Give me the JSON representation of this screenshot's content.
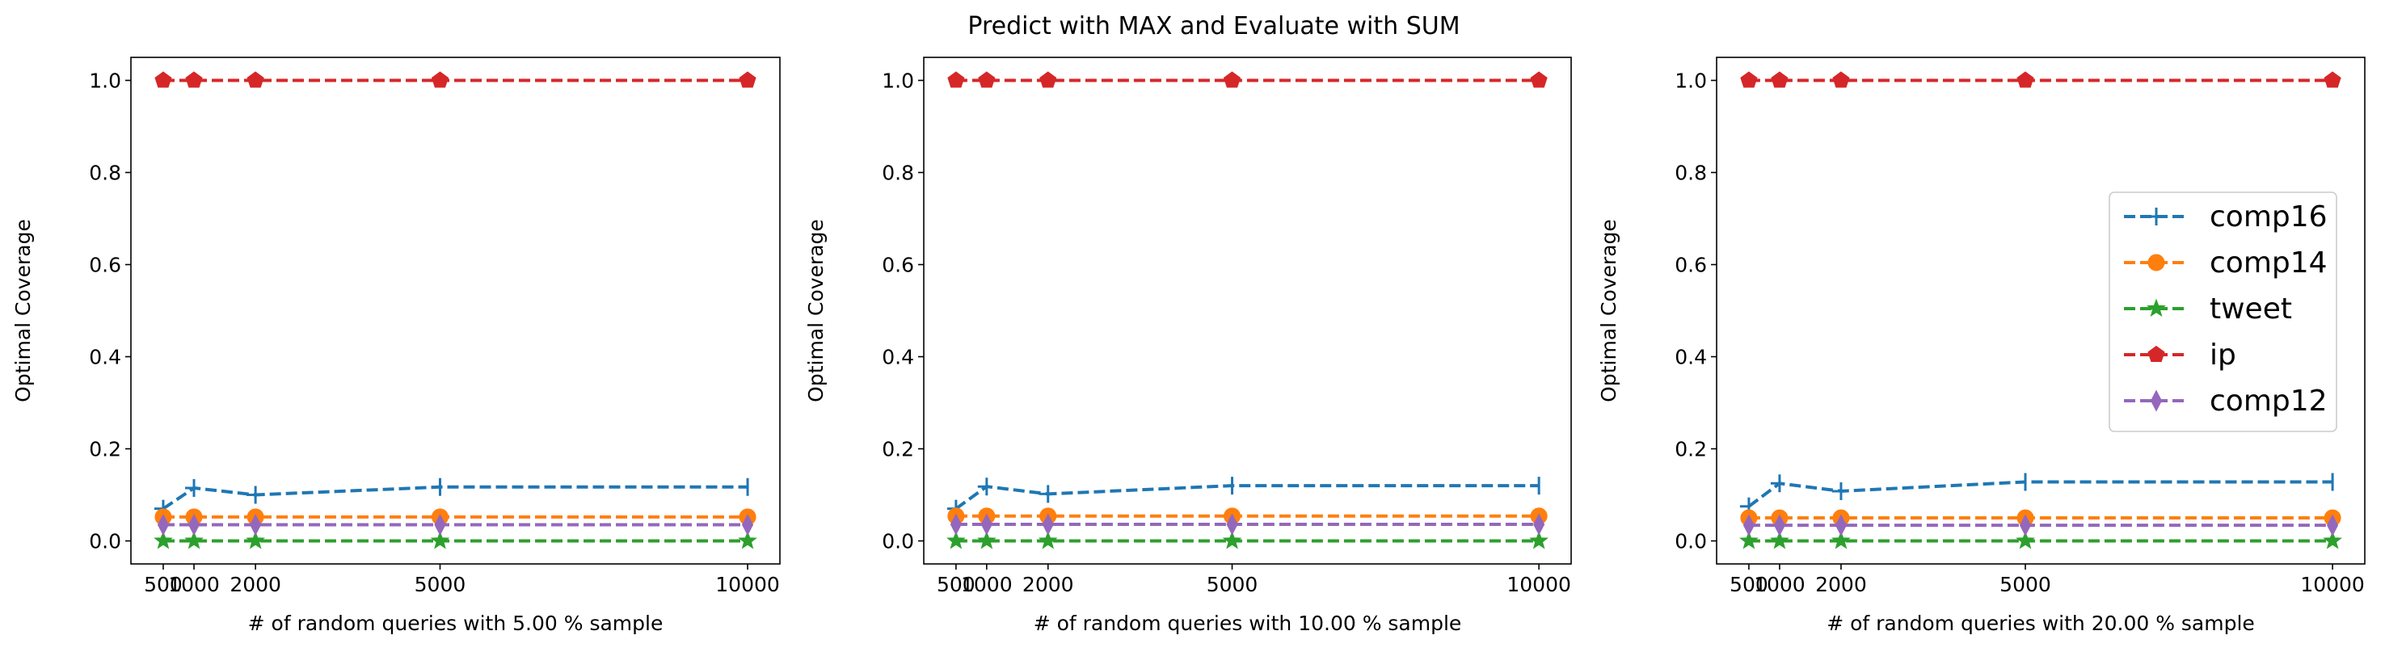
{
  "figure": {
    "suptitle": "Predict with MAX and Evaluate with SUM"
  },
  "colors": {
    "comp16": "#1f77b4",
    "comp14": "#ff7f0e",
    "tweet": "#2ca02c",
    "ip": "#d62728",
    "comp12": "#9467bd"
  },
  "legend": {
    "entries": [
      {
        "name": "comp16",
        "marker": "tri-right-icon"
      },
      {
        "name": "comp14",
        "marker": "circle-icon"
      },
      {
        "name": "tweet",
        "marker": "star-icon"
      },
      {
        "name": "ip",
        "marker": "pentagon-icon"
      },
      {
        "name": "comp12",
        "marker": "thin-diamond-icon"
      }
    ],
    "placement": "center-right of third panel"
  },
  "chart_data": [
    {
      "type": "line",
      "xlabel": "# of random queries with 5.00 % sample",
      "ylabel": "Optimal Coverage",
      "x": [
        500,
        1000,
        2000,
        5000,
        10000
      ],
      "xticks": [
        "500",
        "1000",
        "2000",
        "5000",
        "10000"
      ],
      "yticks": [
        "0.0",
        "0.2",
        "0.4",
        "0.6",
        "0.8",
        "1.0"
      ],
      "xlim": [
        -25,
        10525
      ],
      "ylim": [
        -0.05,
        1.05
      ],
      "grid": false,
      "series": [
        {
          "name": "comp16",
          "values": [
            0.07,
            0.115,
            0.1,
            0.117,
            0.117
          ]
        },
        {
          "name": "comp14",
          "values": [
            0.052,
            0.052,
            0.052,
            0.052,
            0.052
          ]
        },
        {
          "name": "tweet",
          "values": [
            0.0,
            0.0,
            0.0,
            0.0,
            0.0
          ]
        },
        {
          "name": "ip",
          "values": [
            1.0,
            1.0,
            1.0,
            1.0,
            1.0
          ]
        },
        {
          "name": "comp12",
          "values": [
            0.035,
            0.035,
            0.035,
            0.035,
            0.035
          ]
        }
      ]
    },
    {
      "type": "line",
      "xlabel": "# of random queries with 10.00 % sample",
      "ylabel": "Optimal Coverage",
      "x": [
        500,
        1000,
        2000,
        5000,
        10000
      ],
      "xticks": [
        "500",
        "1000",
        "2000",
        "5000",
        "10000"
      ],
      "yticks": [
        "0.0",
        "0.2",
        "0.4",
        "0.6",
        "0.8",
        "1.0"
      ],
      "xlim": [
        -25,
        10525
      ],
      "ylim": [
        -0.05,
        1.05
      ],
      "grid": false,
      "series": [
        {
          "name": "comp16",
          "values": [
            0.07,
            0.118,
            0.102,
            0.12,
            0.12
          ]
        },
        {
          "name": "comp14",
          "values": [
            0.054,
            0.054,
            0.054,
            0.054,
            0.054
          ]
        },
        {
          "name": "tweet",
          "values": [
            0.0,
            0.0,
            0.0,
            0.0,
            0.0
          ]
        },
        {
          "name": "ip",
          "values": [
            1.0,
            1.0,
            1.0,
            1.0,
            1.0
          ]
        },
        {
          "name": "comp12",
          "values": [
            0.036,
            0.036,
            0.036,
            0.036,
            0.036
          ]
        }
      ]
    },
    {
      "type": "line",
      "xlabel": "# of random queries with 20.00 % sample",
      "ylabel": "Optimal Coverage",
      "x": [
        500,
        1000,
        2000,
        5000,
        10000
      ],
      "xticks": [
        "500",
        "1000",
        "2000",
        "5000",
        "10000"
      ],
      "yticks": [
        "0.0",
        "0.2",
        "0.4",
        "0.6",
        "0.8",
        "1.0"
      ],
      "xlim": [
        -25,
        10525
      ],
      "ylim": [
        -0.05,
        1.05
      ],
      "grid": false,
      "series": [
        {
          "name": "comp16",
          "values": [
            0.075,
            0.125,
            0.108,
            0.128,
            0.128
          ]
        },
        {
          "name": "comp14",
          "values": [
            0.05,
            0.05,
            0.05,
            0.05,
            0.05
          ]
        },
        {
          "name": "tweet",
          "values": [
            0.0,
            0.0,
            0.0,
            0.0,
            0.0
          ]
        },
        {
          "name": "ip",
          "values": [
            1.0,
            1.0,
            1.0,
            1.0,
            1.0
          ]
        },
        {
          "name": "comp12",
          "values": [
            0.034,
            0.034,
            0.034,
            0.034,
            0.034
          ]
        }
      ]
    }
  ]
}
